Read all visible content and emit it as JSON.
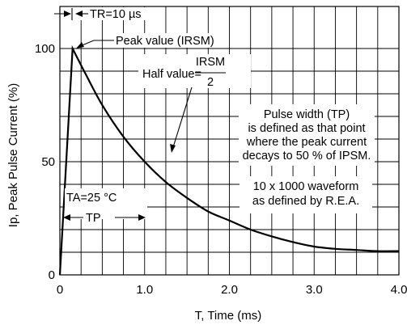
{
  "chart_data": {
    "type": "line",
    "xlabel": "T, Time (ms)",
    "ylabel": "Ip, Peak Pulse Current (%)",
    "xlim": [
      0,
      4.0
    ],
    "ylim": [
      0,
      100
    ],
    "grid": true,
    "x_ticks": [
      "0",
      "1.0",
      "2.0",
      "3.0",
      "4.0"
    ],
    "y_ticks": [
      "0",
      "50",
      "100"
    ],
    "series": [
      {
        "x": [
          0,
          0.15,
          0.3,
          0.5,
          0.75,
          1.0,
          1.25,
          1.5,
          1.75,
          2.0,
          2.25,
          2.5,
          2.75,
          3.0,
          3.25,
          3.5,
          3.75,
          4.0
        ],
        "y": [
          0,
          100,
          89,
          75,
          61,
          50,
          41,
          34,
          28,
          24,
          20,
          17,
          14.5,
          12.5,
          11.5,
          11,
          10.5,
          10.5
        ]
      }
    ],
    "annotations": {
      "tr": "TR=10 µs",
      "peak": "Peak value (IRSM)",
      "half_prefix": "Half value=",
      "half_num": "IRSM",
      "half_den": "2",
      "pulse_def": [
        "Pulse width (TP)",
        "is defined as that point",
        "where the peak current",
        "decays to 50 % of IPSM."
      ],
      "waveform": [
        "10 x 1000 waveform",
        "as defined by R.E.A."
      ],
      "ta": "TA=25 °C",
      "tp": "TP"
    }
  }
}
